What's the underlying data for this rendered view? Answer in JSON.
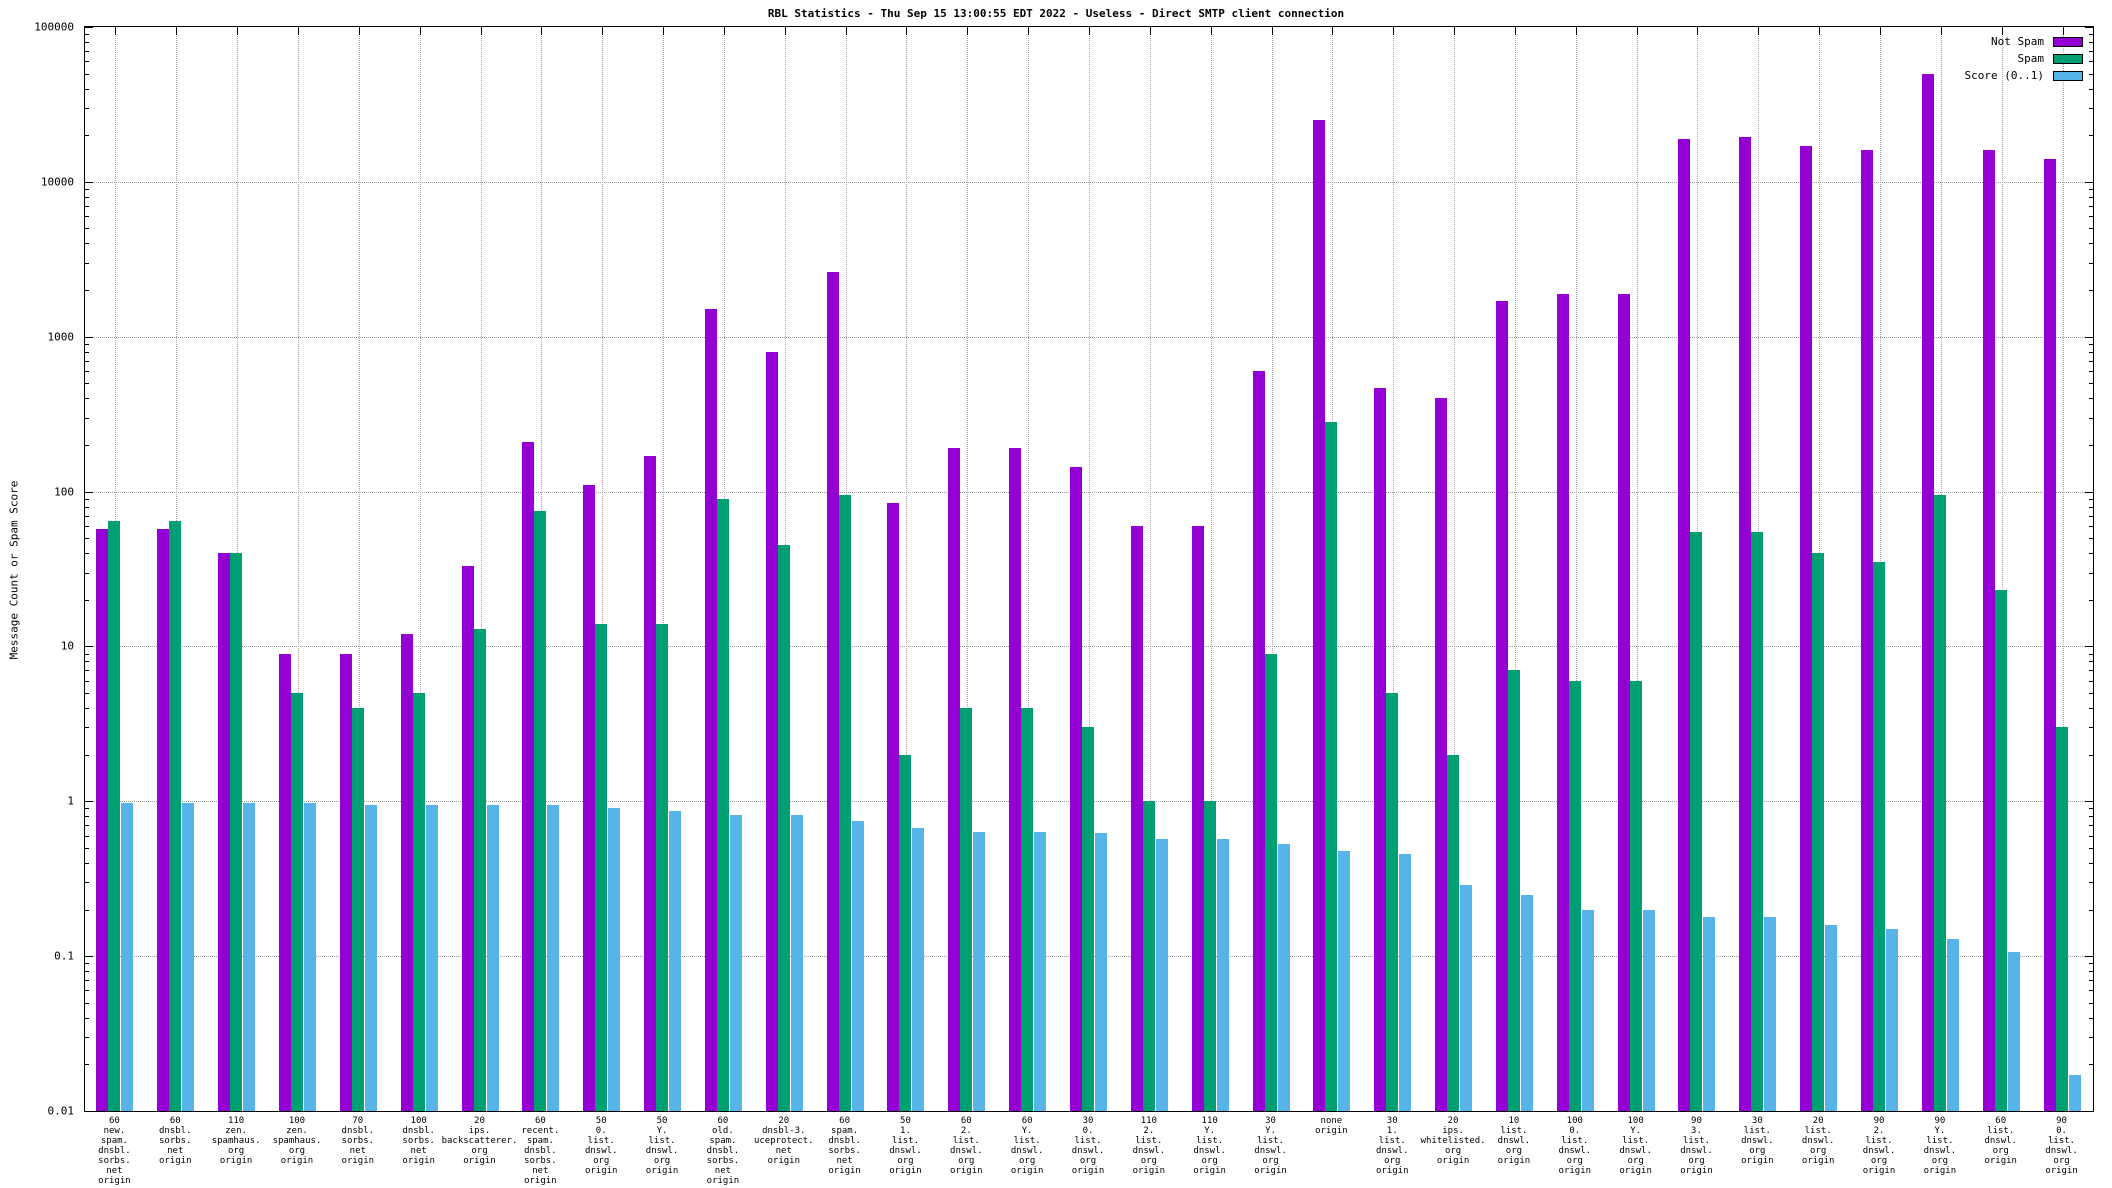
{
  "title": "RBL Statistics - Thu Sep 15 13:00:55 EDT 2022 - Useless - Direct SMTP client connection",
  "ylabel": "Message Count or Spam Score",
  "chart_data": {
    "type": "bar",
    "y_scale": "log",
    "ylim": [
      0.01,
      100000
    ],
    "grid": true,
    "legend_position": "top-right",
    "ytick_labels": [
      "0.01",
      "0.1",
      "1",
      "10",
      "100",
      "1000",
      "10000",
      "100000"
    ],
    "categories": [
      "60\nnew.\nspam.\ndnsbl.\nsorbs.\nnet\norigin",
      "60\ndnsbl.\nsorbs.\nnet\norigin",
      "110\nzen.\nspamhaus.\norg\norigin",
      "100\nzen.\nspamhaus.\norg\norigin",
      "70\ndnsbl.\nsorbs.\nnet\norigin",
      "100\ndnsbl.\nsorbs.\nnet\norigin",
      "20\nips.\nbackscatterer.\norg\norigin",
      "60\nrecent.\nspam.\ndnsbl.\nsorbs.\nnet\norigin",
      "50\n0.\nlist.\ndnswl.\norg\norigin",
      "50\nY.\nlist.\ndnswl.\norg\norigin",
      "60\nold.\nspam.\ndnsbl.\nsorbs.\nnet\norigin",
      "20\ndnsbl-3.\nuceprotect.\nnet\norigin",
      "60\nspam.\ndnsbl.\nsorbs.\nnet\norigin",
      "50\n1.\nlist.\ndnswl.\norg\norigin",
      "60\n2.\nlist.\ndnswl.\norg\norigin",
      "60\nY.\nlist.\ndnswl.\norg\norigin",
      "30\n0.\nlist.\ndnswl.\norg\norigin",
      "110\n2.\nlist.\ndnswl.\norg\norigin",
      "110\nY.\nlist.\ndnswl.\norg\norigin",
      "30\nY.\nlist.\ndnswl.\norg\norigin",
      "none\norigin",
      "30\n1.\nlist.\ndnswl.\norg\norigin",
      "20\nips.\nwhitelisted.\norg\norigin",
      "10\nlist.\ndnswl.\norg\norigin",
      "100\n0.\nlist.\ndnswl.\norg\norigin",
      "100\nY.\nlist.\ndnswl.\norg\norigin",
      "90\n3.\nlist.\ndnswl.\norg\norigin",
      "30\nlist.\ndnswl.\norg\norigin",
      "20\nlist.\ndnswl.\norg\norigin",
      "90\n2.\nlist.\ndnswl.\norg\norigin",
      "90\nY.\nlist.\ndnswl.\norg\norigin",
      "60\nlist.\ndnswl.\norg\norigin",
      "90\n0.\nlist.\ndnswl.\norg\norigin"
    ],
    "series": [
      {
        "name": "Not Spam",
        "key": "not-spam",
        "color": "#9400D3",
        "values": [
          57,
          57,
          40,
          9,
          9,
          12,
          33,
          210,
          110,
          170,
          1500,
          800,
          2600,
          85,
          190,
          190,
          145,
          60,
          60,
          600,
          25000,
          470,
          400,
          1700,
          1900,
          1900,
          19000,
          19500,
          17000,
          16000,
          50000,
          16000,
          14000
        ]
      },
      {
        "name": "Spam",
        "key": "spam",
        "color": "#009E73",
        "values": [
          65,
          65,
          40,
          5,
          4,
          5,
          13,
          75,
          14,
          14,
          90,
          45,
          95,
          2,
          4,
          4,
          3,
          1,
          1,
          9,
          280,
          5,
          2,
          7,
          6,
          6,
          55,
          55,
          40,
          35,
          95,
          23,
          3
        ]
      },
      {
        "name": "Score (0..1)",
        "key": "score",
        "color": "#56B4E9",
        "values": [
          0.97,
          0.97,
          0.97,
          0.97,
          0.95,
          0.95,
          0.95,
          0.95,
          0.9,
          0.87,
          0.82,
          0.82,
          0.75,
          0.67,
          0.63,
          0.63,
          0.62,
          0.57,
          0.57,
          0.53,
          0.48,
          0.46,
          0.29,
          0.25,
          0.2,
          0.2,
          0.18,
          0.18,
          0.16,
          0.15,
          0.13,
          0.107,
          0.017
        ]
      }
    ]
  }
}
